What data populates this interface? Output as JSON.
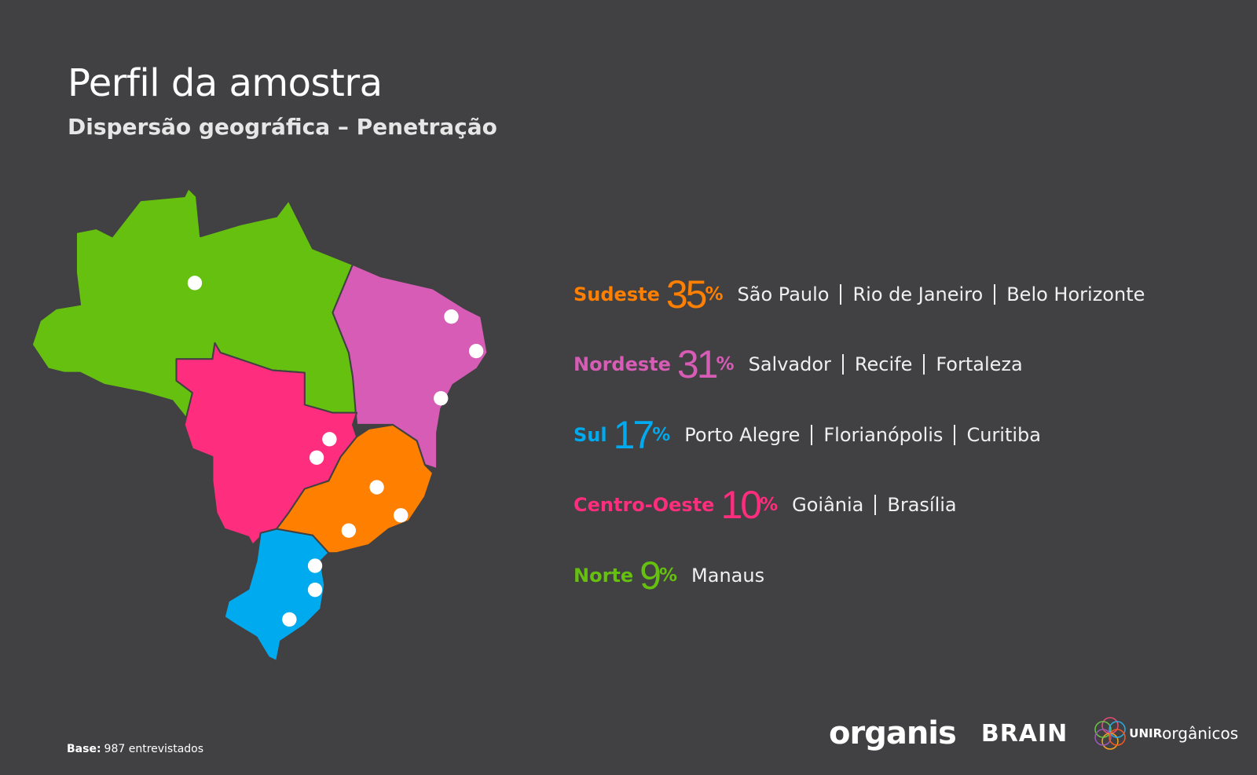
{
  "header": {
    "title": "Perfil da amostra",
    "subtitle": "Dispersão geográfica – Penetração"
  },
  "regions": [
    {
      "name": "Sudeste",
      "value": 35,
      "unit": "%",
      "color": "#ff7f00",
      "cities": [
        "São Paulo",
        "Rio de Janeiro",
        "Belo Horizonte"
      ]
    },
    {
      "name": "Nordeste",
      "value": 31,
      "unit": "%",
      "color": "#d65cb5",
      "cities": [
        "Salvador",
        "Recife",
        "Fortaleza"
      ]
    },
    {
      "name": "Sul",
      "value": 17,
      "unit": "%",
      "color": "#00aaee",
      "cities": [
        "Porto Alegre",
        "Florianópolis",
        "Curitiba"
      ]
    },
    {
      "name": "Centro-Oeste",
      "value": 10,
      "unit": "%",
      "color": "#ff2d7d",
      "cities": [
        "Goiânia",
        "Brasília"
      ]
    },
    {
      "name": "Norte",
      "value": 9,
      "unit": "%",
      "color": "#66c010",
      "cities": [
        "Manaus"
      ]
    }
  ],
  "footer": {
    "base_label": "Base:",
    "base_text": "987 entrevistados"
  },
  "logos": {
    "organis": "organis",
    "brain": "BRAIN",
    "unir_bold": "UNIR",
    "unir_rest": "orgânicos"
  }
}
